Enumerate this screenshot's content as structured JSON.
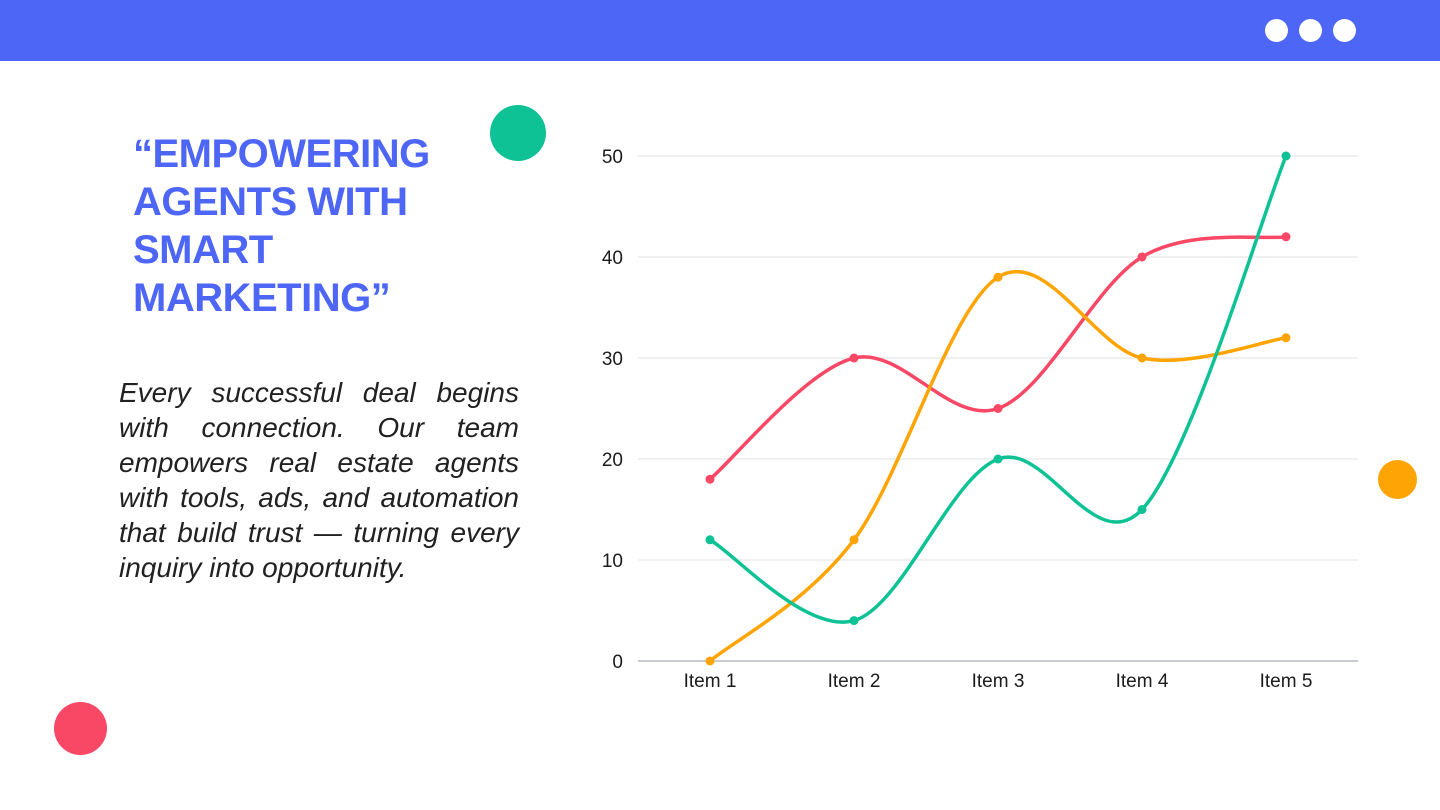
{
  "window": {
    "bar_color": "#4D66F5",
    "dot_color": "#ffffff",
    "dot_count": 3
  },
  "quote": {
    "title": "“EMPOWERING AGENTS WITH SMART MARKETING”",
    "body": "Every successful deal begins with connection. Our team empowers real estate agents with tools, ads, and automation that build trust — turning every inquiry into opportunity."
  },
  "colors": {
    "accent_blue": "#4D66F5",
    "deco_teal": "#0EC296",
    "deco_pink": "#F94866",
    "deco_orange": "#FFA405"
  },
  "chart_data": {
    "type": "line",
    "title": "",
    "xlabel": "",
    "ylabel": "",
    "categories": [
      "Item 1",
      "Item 2",
      "Item 3",
      "Item 4",
      "Item 5"
    ],
    "series": [
      {
        "name": "pink-series",
        "color": "#F94866",
        "values": [
          18,
          30,
          25,
          40,
          42
        ]
      },
      {
        "name": "orange-series",
        "color": "#FFA405",
        "values": [
          0,
          12,
          38,
          30,
          32
        ]
      },
      {
        "name": "teal-series",
        "color": "#0EC296",
        "values": [
          12,
          4,
          20,
          15,
          50
        ]
      }
    ],
    "ylim": [
      0,
      50
    ],
    "yticks": [
      0,
      10,
      20,
      30,
      40,
      50
    ],
    "grid": true,
    "gridline_color": "#ebebeb",
    "baseline_color": "#c9cdd1",
    "legend_position": "none",
    "smooth": true,
    "point_markers": true
  }
}
